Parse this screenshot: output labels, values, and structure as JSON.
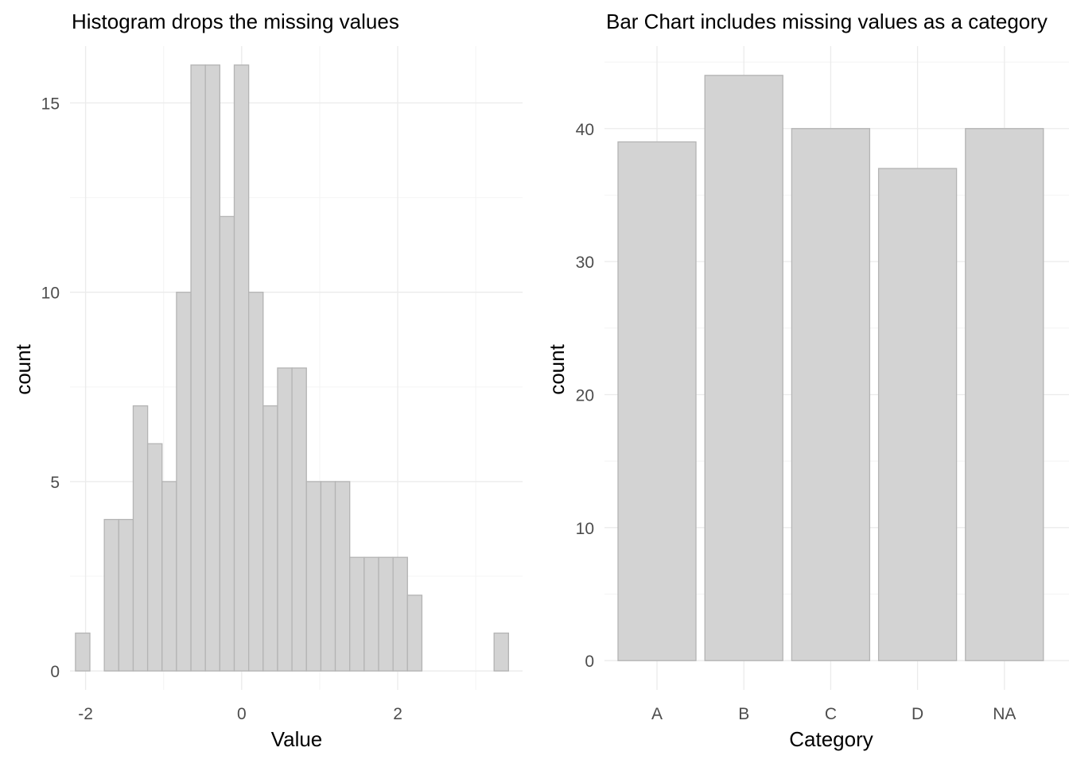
{
  "chart_data": [
    {
      "type": "bar",
      "subtype": "histogram",
      "title": "Histogram drops the missing values",
      "xlabel": "Value",
      "ylabel": "count",
      "xlim": [
        -2.2,
        3.6
      ],
      "ylim": [
        -0.5,
        16.5
      ],
      "xticks": [
        {
          "v": -2,
          "label": "-2"
        },
        {
          "v": 0,
          "label": "0"
        },
        {
          "v": 2,
          "label": "2"
        }
      ],
      "yticks": [
        {
          "v": 0,
          "label": "0"
        },
        {
          "v": 5,
          "label": "5"
        },
        {
          "v": 10,
          "label": "10"
        },
        {
          "v": 15,
          "label": "15"
        }
      ],
      "bins": {
        "start": -2.13,
        "width": 0.185,
        "counts": [
          1,
          0,
          4,
          4,
          7,
          6,
          5,
          10,
          16,
          16,
          12,
          16,
          10,
          7,
          8,
          8,
          5,
          5,
          5,
          3,
          3,
          3,
          3,
          2,
          0,
          0,
          0,
          0,
          0,
          1
        ]
      },
      "grid": true
    },
    {
      "type": "bar",
      "title": "Bar Chart includes missing values as a category",
      "xlabel": "Category",
      "ylabel": "count",
      "categories": [
        "A",
        "B",
        "C",
        "D",
        "NA"
      ],
      "values": [
        39,
        44,
        40,
        37,
        40
      ],
      "ylim": [
        -2.2,
        46.2
      ],
      "yticks": [
        {
          "v": 0,
          "label": "0"
        },
        {
          "v": 10,
          "label": "10"
        },
        {
          "v": 20,
          "label": "20"
        },
        {
          "v": 30,
          "label": "30"
        },
        {
          "v": 40,
          "label": "40"
        }
      ],
      "grid": true
    }
  ],
  "colors": {
    "bar_fill": "#d3d3d3",
    "bar_stroke": "#b4b4b4",
    "grid_major": "#ebebeb",
    "grid_minor": "#f4f4f4",
    "tick_text": "#4d4d4d",
    "title_text": "#000000"
  }
}
